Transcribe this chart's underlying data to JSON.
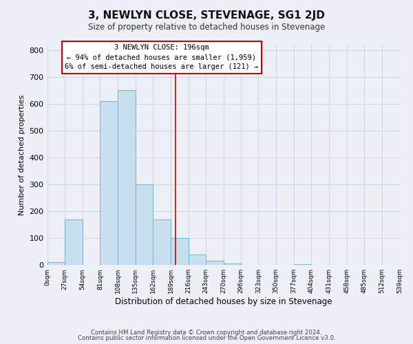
{
  "title": "3, NEWLYN CLOSE, STEVENAGE, SG1 2JD",
  "subtitle": "Size of property relative to detached houses in Stevenage",
  "xlabel": "Distribution of detached houses by size in Stevenage",
  "ylabel": "Number of detached properties",
  "bin_edges": [
    0,
    27,
    54,
    81,
    108,
    135,
    162,
    189,
    216,
    243,
    270,
    296,
    323,
    350,
    377,
    404,
    431,
    458,
    485,
    512,
    539
  ],
  "bar_heights": [
    10,
    170,
    0,
    610,
    650,
    300,
    170,
    100,
    40,
    15,
    5,
    0,
    0,
    0,
    4,
    0,
    0,
    0,
    0,
    0
  ],
  "bar_color": "#c8dff0",
  "bar_edge_color": "#7eb8d4",
  "vline_x": 196,
  "vline_color": "#cc0000",
  "annotation_text_line1": "3 NEWLYN CLOSE: 196sqm",
  "annotation_text_line2": "← 94% of detached houses are smaller (1,959)",
  "annotation_text_line3": "6% of semi-detached houses are larger (121) →",
  "annotation_box_facecolor": "white",
  "annotation_box_edgecolor": "#cc0000",
  "xtick_labels": [
    "0sqm",
    "27sqm",
    "54sqm",
    "81sqm",
    "108sqm",
    "135sqm",
    "162sqm",
    "189sqm",
    "216sqm",
    "243sqm",
    "270sqm",
    "296sqm",
    "323sqm",
    "350sqm",
    "377sqm",
    "404sqm",
    "431sqm",
    "458sqm",
    "485sqm",
    "512sqm",
    "539sqm"
  ],
  "ytick_values": [
    0,
    100,
    200,
    300,
    400,
    500,
    600,
    700,
    800
  ],
  "ylim": [
    0,
    820
  ],
  "xlim": [
    0,
    539
  ],
  "grid_color": "#d0d8e8",
  "background_color": "#eef0f8",
  "footer_line1": "Contains HM Land Registry data © Crown copyright and database right 2024.",
  "footer_line2": "Contains public sector information licensed under the Open Government Licence v3.0."
}
